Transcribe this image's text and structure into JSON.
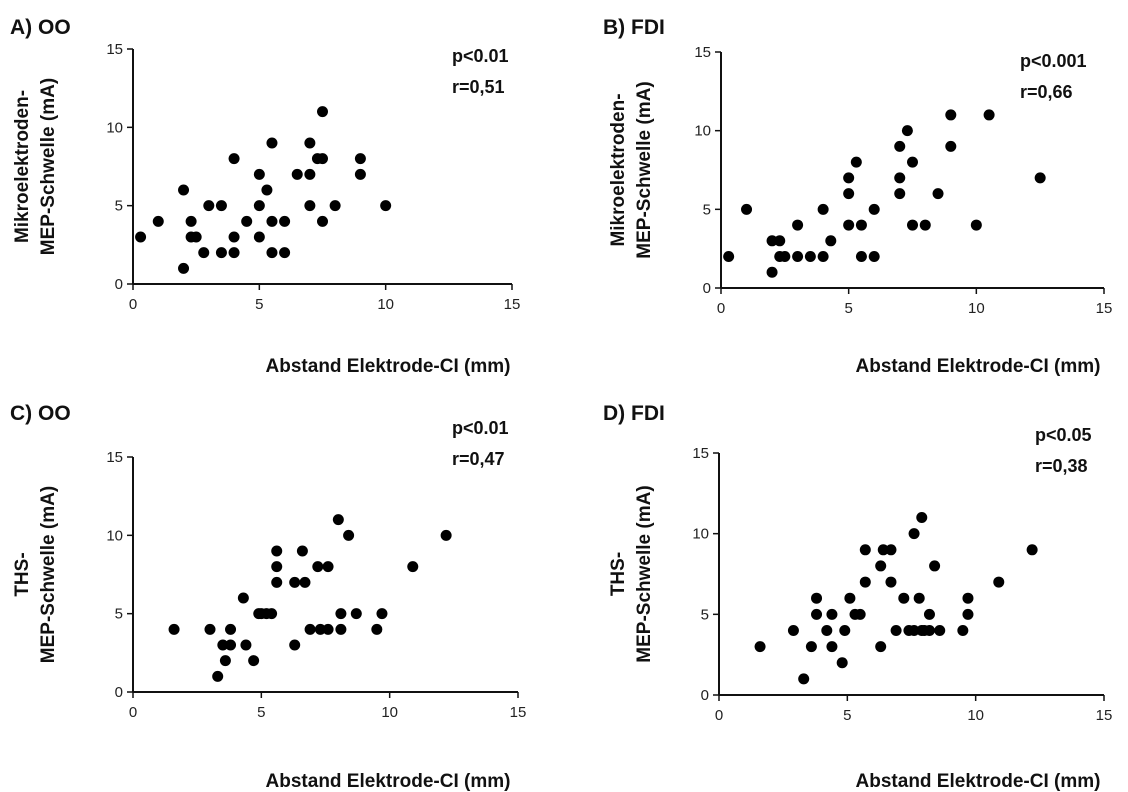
{
  "chart_data": [
    {
      "type": "scatter",
      "title": "A) OO",
      "xlabel": "Abstand Elektrode-CI (mm)",
      "ylabel": [
        "Mikroelektroden-",
        "MEP-Schwelle (mA)"
      ],
      "xlim": [
        0,
        15
      ],
      "ylim": [
        0,
        15
      ],
      "xticks": [
        0,
        5,
        10,
        15
      ],
      "yticks": [
        0,
        5,
        10,
        15
      ],
      "stats": [
        "p<0.01",
        "r=0,51"
      ],
      "points": [
        [
          0.3,
          3
        ],
        [
          1,
          4
        ],
        [
          2,
          6
        ],
        [
          2,
          1
        ],
        [
          2.3,
          4
        ],
        [
          2.3,
          3
        ],
        [
          2.5,
          3
        ],
        [
          2.8,
          2
        ],
        [
          3,
          5
        ],
        [
          3.5,
          2
        ],
        [
          3.5,
          5
        ],
        [
          4,
          8
        ],
        [
          4,
          2
        ],
        [
          4,
          3
        ],
        [
          4.5,
          4
        ],
        [
          5,
          7
        ],
        [
          5,
          5
        ],
        [
          5,
          3
        ],
        [
          5.3,
          6
        ],
        [
          5.5,
          9
        ],
        [
          5.5,
          4
        ],
        [
          5.5,
          2
        ],
        [
          6,
          4
        ],
        [
          6,
          2
        ],
        [
          6.5,
          7
        ],
        [
          7,
          9
        ],
        [
          7,
          7
        ],
        [
          7,
          5
        ],
        [
          7.3,
          8
        ],
        [
          7.5,
          11
        ],
        [
          7.5,
          8
        ],
        [
          7.5,
          4
        ],
        [
          8,
          5
        ],
        [
          9,
          8
        ],
        [
          9,
          7
        ],
        [
          10,
          5
        ]
      ]
    },
    {
      "type": "scatter",
      "title": "B) FDI",
      "xlabel": "Abstand Elektrode-CI (mm)",
      "ylabel": [
        "Mikroelektroden-",
        "MEP-Schwelle (mA)"
      ],
      "xlim": [
        0,
        15
      ],
      "ylim": [
        0,
        15
      ],
      "xticks": [
        0,
        5,
        10,
        15
      ],
      "yticks": [
        0,
        5,
        10,
        15
      ],
      "stats": [
        "p<0.001",
        "r=0,66"
      ],
      "points": [
        [
          0.3,
          2
        ],
        [
          1,
          5
        ],
        [
          2,
          3
        ],
        [
          2,
          1
        ],
        [
          2.3,
          3
        ],
        [
          2.3,
          2
        ],
        [
          2.5,
          2
        ],
        [
          3,
          4
        ],
        [
          3,
          2
        ],
        [
          3.5,
          2
        ],
        [
          4,
          5
        ],
        [
          4,
          2
        ],
        [
          4.3,
          3
        ],
        [
          5,
          7
        ],
        [
          5,
          6
        ],
        [
          5,
          4
        ],
        [
          5.3,
          8
        ],
        [
          5.5,
          4
        ],
        [
          5.5,
          2
        ],
        [
          6,
          5
        ],
        [
          6,
          2
        ],
        [
          7,
          9
        ],
        [
          7,
          7
        ],
        [
          7,
          6
        ],
        [
          7.3,
          10
        ],
        [
          7.5,
          8
        ],
        [
          7.5,
          4
        ],
        [
          8,
          4
        ],
        [
          8.5,
          6
        ],
        [
          9,
          11
        ],
        [
          9,
          9
        ],
        [
          10,
          4
        ],
        [
          10.5,
          11
        ],
        [
          12.5,
          7
        ]
      ]
    },
    {
      "type": "scatter",
      "title": "C) OO",
      "xlabel": "Abstand Elektrode-CI (mm)",
      "ylabel": [
        "THS-",
        "MEP-Schwelle (mA)"
      ],
      "xlim": [
        0,
        15
      ],
      "ylim": [
        0,
        15
      ],
      "xticks": [
        0,
        5,
        10,
        15
      ],
      "yticks": [
        0,
        5,
        10,
        15
      ],
      "stats": [
        "p<0.01",
        "r=0,47"
      ],
      "points": [
        [
          1.6,
          4
        ],
        [
          3,
          4
        ],
        [
          3.3,
          1
        ],
        [
          3.5,
          3
        ],
        [
          3.6,
          2
        ],
        [
          3.8,
          4
        ],
        [
          3.8,
          3
        ],
        [
          4.3,
          6
        ],
        [
          4.4,
          3
        ],
        [
          4.7,
          2
        ],
        [
          4.9,
          5
        ],
        [
          5,
          5
        ],
        [
          5.2,
          5
        ],
        [
          5.4,
          5
        ],
        [
          5.6,
          9
        ],
        [
          5.6,
          8
        ],
        [
          5.6,
          7
        ],
        [
          6.3,
          7
        ],
        [
          6.3,
          3
        ],
        [
          6.6,
          9
        ],
        [
          6.7,
          7
        ],
        [
          6.9,
          4
        ],
        [
          7.2,
          8
        ],
        [
          7.3,
          4
        ],
        [
          7.6,
          8
        ],
        [
          7.6,
          4
        ],
        [
          8,
          11
        ],
        [
          8.1,
          4
        ],
        [
          8.1,
          5
        ],
        [
          8.4,
          10
        ],
        [
          8.7,
          5
        ],
        [
          9.5,
          4
        ],
        [
          9.7,
          5
        ],
        [
          10.9,
          8
        ],
        [
          12.2,
          10
        ]
      ]
    },
    {
      "type": "scatter",
      "title": "D) FDI",
      "xlabel": "Abstand Elektrode-CI (mm)",
      "ylabel": [
        "THS-",
        "MEP-Schwelle (mA)"
      ],
      "xlim": [
        0,
        15
      ],
      "ylim": [
        0,
        15
      ],
      "xticks": [
        0,
        5,
        10,
        15
      ],
      "yticks": [
        0,
        5,
        10,
        15
      ],
      "stats": [
        "p<0.05",
        "r=0,38"
      ],
      "points": [
        [
          1.6,
          3
        ],
        [
          2.9,
          4
        ],
        [
          3.3,
          1
        ],
        [
          3.6,
          3
        ],
        [
          3.8,
          6
        ],
        [
          3.8,
          5
        ],
        [
          4.2,
          4
        ],
        [
          4.4,
          5
        ],
        [
          4.4,
          3
        ],
        [
          4.8,
          2
        ],
        [
          4.9,
          4
        ],
        [
          5.1,
          6
        ],
        [
          5.3,
          5
        ],
        [
          5.5,
          5
        ],
        [
          5.7,
          9
        ],
        [
          5.7,
          7
        ],
        [
          6.3,
          8
        ],
        [
          6.3,
          3
        ],
        [
          6.4,
          9
        ],
        [
          6.7,
          9
        ],
        [
          6.7,
          7
        ],
        [
          6.9,
          4
        ],
        [
          7.2,
          6
        ],
        [
          7.4,
          4
        ],
        [
          7.6,
          10
        ],
        [
          7.6,
          4
        ],
        [
          7.8,
          6
        ],
        [
          7.9,
          11
        ],
        [
          7.9,
          4
        ],
        [
          8,
          4
        ],
        [
          8.2,
          5
        ],
        [
          8.2,
          4
        ],
        [
          8.4,
          8
        ],
        [
          8.6,
          4
        ],
        [
          9.5,
          4
        ],
        [
          9.7,
          6
        ],
        [
          9.7,
          5
        ],
        [
          10.9,
          7
        ],
        [
          12.2,
          9
        ]
      ]
    }
  ]
}
